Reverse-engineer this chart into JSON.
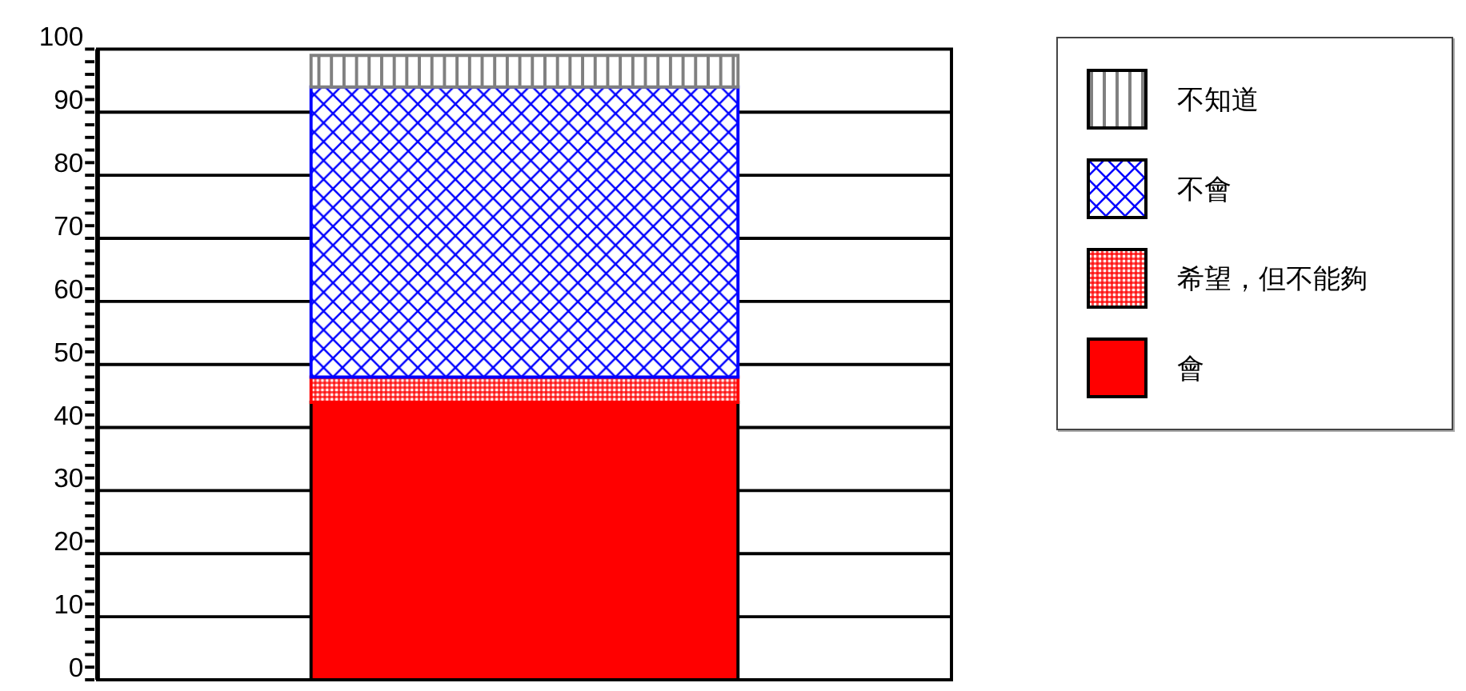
{
  "chart_data": {
    "type": "bar",
    "stacked": true,
    "categories": [
      null
    ],
    "series": [
      {
        "name": "會",
        "color": "#ff0000",
        "values": [
          44
        ]
      },
      {
        "name": "希望，但不能夠",
        "color": "#ff0000",
        "values": [
          4
        ]
      },
      {
        "name": "不會",
        "color": "#0000ff",
        "values": [
          46
        ]
      },
      {
        "name": "不知道",
        "color": "#808080",
        "values": [
          5
        ]
      }
    ],
    "ylim": [
      0,
      100
    ],
    "yticks": [
      0,
      {
        "value": 2,
        "label": null
      },
      {
        "value": 4,
        "label": null
      },
      {
        "value": 6,
        "label": null
      },
      {
        "value": 8,
        "label": null
      },
      10,
      {
        "value": 12,
        "label": null
      },
      {
        "value": 14,
        "label": null
      },
      {
        "value": 16,
        "label": null
      },
      {
        "value": 18,
        "label": null
      },
      20,
      {
        "value": 22,
        "label": null
      },
      {
        "value": 24,
        "label": null
      },
      {
        "value": 26,
        "label": null
      },
      {
        "value": 28,
        "label": null
      },
      30,
      {
        "value": 32,
        "label": null
      },
      {
        "value": 34,
        "label": null
      },
      {
        "value": 36,
        "label": null
      },
      {
        "value": 38,
        "label": null
      },
      40,
      {
        "value": 42,
        "label": null
      },
      {
        "value": 44,
        "label": null
      },
      {
        "value": 46,
        "label": null
      },
      {
        "value": 48,
        "label": null
      },
      50,
      {
        "value": 52,
        "label": null
      },
      {
        "value": 54,
        "label": null
      },
      {
        "value": 56,
        "label": null
      },
      {
        "value": 58,
        "label": null
      },
      60,
      {
        "value": 62,
        "label": null
      },
      {
        "value": 64,
        "label": null
      },
      {
        "value": 66,
        "label": null
      },
      {
        "value": 68,
        "label": null
      },
      70,
      {
        "value": 72,
        "label": null
      },
      {
        "value": 74,
        "label": null
      },
      {
        "value": 76,
        "label": null
      },
      {
        "value": 78,
        "label": null
      },
      80,
      {
        "value": 82,
        "label": null
      },
      {
        "value": 84,
        "label": null
      },
      {
        "value": 86,
        "label": null
      },
      {
        "value": 88,
        "label": null
      },
      90,
      {
        "value": 92,
        "label": null
      },
      {
        "value": 94,
        "label": null
      },
      {
        "value": 96,
        "label": null
      },
      {
        "value": 98,
        "label": null
      },
      100
    ],
    "grid": "y",
    "legend": "right"
  }
}
